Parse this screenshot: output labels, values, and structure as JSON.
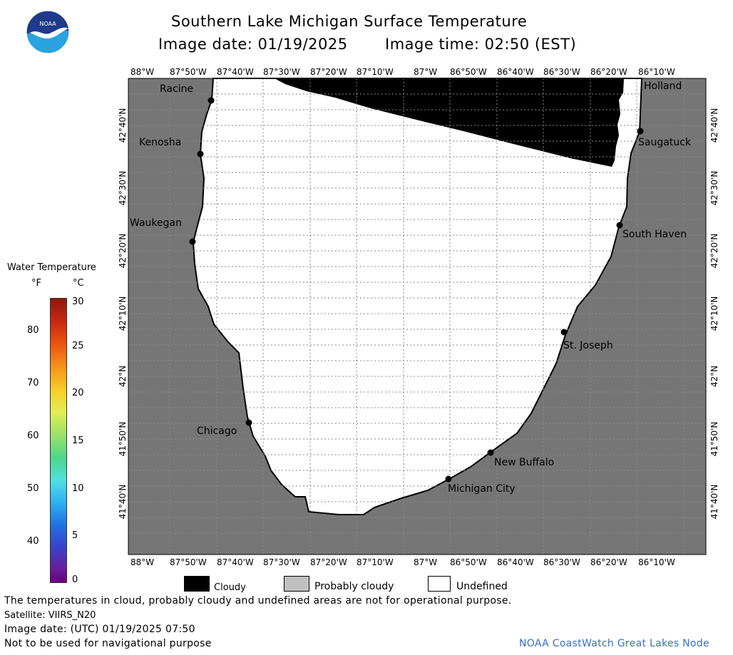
{
  "header": {
    "title": "Southern Lake Michigan Surface Temperature",
    "image_date_label": "Image date: 01/19/2025",
    "image_time_label": "Image time: 02:50 (EST)"
  },
  "logo": {
    "text": "NOAA",
    "colors": {
      "top": "#1e3a8a",
      "bottom": "#2aa3e0",
      "bird": "#ffffff"
    }
  },
  "map": {
    "colors": {
      "land": "#767676",
      "water_undefined": "#ffffff",
      "cloudy": "#000000",
      "grid": "#9a9a9a"
    },
    "lon_ticks": [
      "88°W",
      "87°50'W",
      "87°40'W",
      "87°30'W",
      "87°20'W",
      "87°10'W",
      "87°W",
      "86°50'W",
      "86°40'W",
      "86°30'W",
      "86°20'W",
      "86°10'W"
    ],
    "lat_ticks": [
      "42°40'N",
      "42°30'N",
      "42°20'N",
      "42°10'N",
      "42°N",
      "41°50'N",
      "41°40'N"
    ],
    "cities": [
      {
        "name": "Racine"
      },
      {
        "name": "Kenosha"
      },
      {
        "name": "Waukegan"
      },
      {
        "name": "Chicago"
      },
      {
        "name": "Michigan City"
      },
      {
        "name": "New Buffalo"
      },
      {
        "name": "St. Joseph"
      },
      {
        "name": "South Haven"
      },
      {
        "name": "Saugatuck"
      },
      {
        "name": "Holland"
      }
    ]
  },
  "colorbar": {
    "title": "Water Temperature",
    "unit_f": "°F",
    "unit_c": "°C",
    "f_ticks": [
      "80",
      "70",
      "60",
      "50",
      "40"
    ],
    "c_ticks": [
      "30",
      "25",
      "20",
      "15",
      "10",
      "5",
      "0"
    ]
  },
  "legend": {
    "cloudy": "Cloudy",
    "probably_cloudy": "Probably cloudy",
    "undefined": "Undefined",
    "colors": {
      "cloudy": "#000000",
      "probably_cloudy": "#c0c0c0",
      "undefined": "#ffffff"
    }
  },
  "footer": {
    "disclaimer": "The temperatures in cloud, probably cloudy and undefined areas are not for operational purpose.",
    "satellite": "Satellite: VIIRS_N20",
    "utc_date": "Image date: (UTC) 01/19/2025  07:50",
    "nav_warning": "Not to be used for navigational purpose",
    "credit": "NOAA CoastWatch Great Lakes Node",
    "credit_color": "#3a6fc9"
  }
}
